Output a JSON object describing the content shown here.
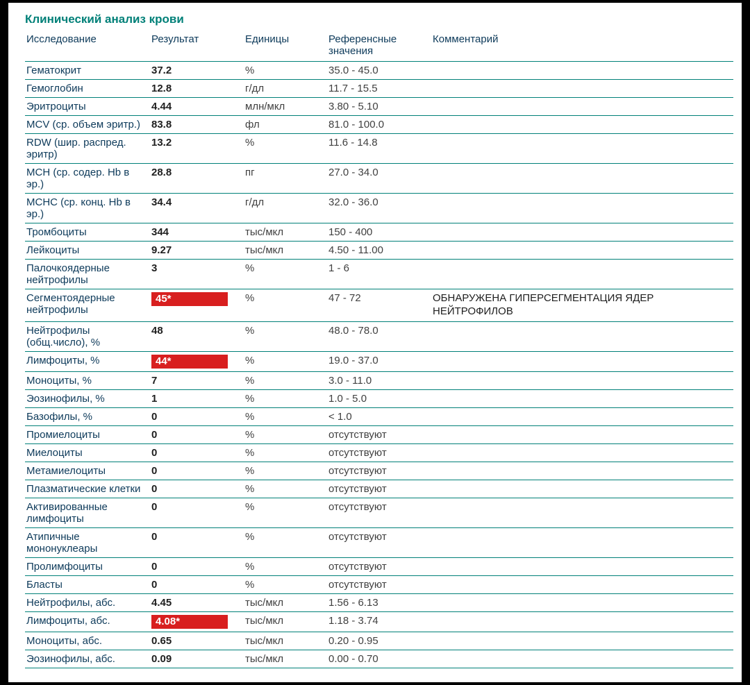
{
  "colors": {
    "title": "#008078",
    "header_text": "#0d3a5a",
    "name_text": "#0d3a5a",
    "result_text": "#202020",
    "unit_text": "#404040",
    "ref_text": "#404040",
    "comment_text": "#202020",
    "row_border": "#008078",
    "flag_bg": "#d81f1f",
    "flag_text": "#ffffff"
  },
  "title": "Клинический анализ крови",
  "headers": {
    "name": "Исследование",
    "result": "Результат",
    "unit": "Единицы",
    "ref": "Референсные значения",
    "comment": "Комментарий"
  },
  "rows": [
    {
      "name": "Гематокрит",
      "result": "37.2",
      "flag": false,
      "unit": "%",
      "ref": "35.0 - 45.0",
      "comment": ""
    },
    {
      "name": "Гемоглобин",
      "result": "12.8",
      "flag": false,
      "unit": "г/дл",
      "ref": "11.7 - 15.5",
      "comment": ""
    },
    {
      "name": "Эритроциты",
      "result": "4.44",
      "flag": false,
      "unit": "млн/мкл",
      "ref": "3.80 - 5.10",
      "comment": ""
    },
    {
      "name": "MCV (ср. объем эритр.)",
      "result": "83.8",
      "flag": false,
      "unit": "фл",
      "ref": "81.0 - 100.0",
      "comment": ""
    },
    {
      "name": "RDW (шир. распред. эритр)",
      "result": "13.2",
      "flag": false,
      "unit": "%",
      "ref": "11.6 - 14.8",
      "comment": ""
    },
    {
      "name": "MCH (ср. содер. Hb в эр.)",
      "result": "28.8",
      "flag": false,
      "unit": "пг",
      "ref": "27.0 - 34.0",
      "comment": ""
    },
    {
      "name": "MCHC (ср. конц. Hb в эр.)",
      "result": "34.4",
      "flag": false,
      "unit": "г/дл",
      "ref": "32.0 - 36.0",
      "comment": ""
    },
    {
      "name": "Тромбоциты",
      "result": "344",
      "flag": false,
      "unit": "тыс/мкл",
      "ref": "150 - 400",
      "comment": ""
    },
    {
      "name": "Лейкоциты",
      "result": "9.27",
      "flag": false,
      "unit": "тыс/мкл",
      "ref": "4.50 - 11.00",
      "comment": ""
    },
    {
      "name": "Палочкоядерные нейтрофилы",
      "result": "3",
      "flag": false,
      "unit": "%",
      "ref": "1 - 6",
      "comment": ""
    },
    {
      "name": "Сегментоядерные нейтрофилы",
      "result": "45*",
      "flag": true,
      "unit": "%",
      "ref": "47 - 72",
      "comment": "ОБНАРУЖЕНА ГИПЕРСЕГМЕНТАЦИЯ ЯДЕР НЕЙТРОФИЛОВ"
    },
    {
      "name": "Нейтрофилы (общ.число), %",
      "result": "48",
      "flag": false,
      "unit": "%",
      "ref": "48.0 - 78.0",
      "comment": ""
    },
    {
      "name": "Лимфоциты, %",
      "result": "44*",
      "flag": true,
      "unit": "%",
      "ref": "19.0 - 37.0",
      "comment": ""
    },
    {
      "name": "Моноциты, %",
      "result": "7",
      "flag": false,
      "unit": "%",
      "ref": "3.0 - 11.0",
      "comment": ""
    },
    {
      "name": "Эозинофилы, %",
      "result": "1",
      "flag": false,
      "unit": "%",
      "ref": "1.0 - 5.0",
      "comment": ""
    },
    {
      "name": "Базофилы, %",
      "result": "0",
      "flag": false,
      "unit": "%",
      "ref": "< 1.0",
      "comment": ""
    },
    {
      "name": "Промиелоциты",
      "result": "0",
      "flag": false,
      "unit": "%",
      "ref": "отсутствуют",
      "comment": ""
    },
    {
      "name": "Миелоциты",
      "result": "0",
      "flag": false,
      "unit": "%",
      "ref": "отсутствуют",
      "comment": ""
    },
    {
      "name": "Метамиелоциты",
      "result": "0",
      "flag": false,
      "unit": "%",
      "ref": "отсутствуют",
      "comment": ""
    },
    {
      "name": "Плазматические клетки",
      "result": "0",
      "flag": false,
      "unit": "%",
      "ref": "отсутствуют",
      "comment": ""
    },
    {
      "name": "Активированные лимфоциты",
      "result": "0",
      "flag": false,
      "unit": "%",
      "ref": "отсутствуют",
      "comment": ""
    },
    {
      "name": "Атипичные мононуклеары",
      "result": "0",
      "flag": false,
      "unit": "%",
      "ref": "отсутствуют",
      "comment": ""
    },
    {
      "name": "Пролимфоциты",
      "result": "0",
      "flag": false,
      "unit": "%",
      "ref": "отсутствуют",
      "comment": ""
    },
    {
      "name": "Бласты",
      "result": "0",
      "flag": false,
      "unit": "%",
      "ref": "отсутствуют",
      "comment": ""
    },
    {
      "name": "Нейтрофилы, абс.",
      "result": "4.45",
      "flag": false,
      "unit": "тыс/мкл",
      "ref": "1.56 - 6.13",
      "comment": ""
    },
    {
      "name": "Лимфоциты, абс.",
      "result": "4.08*",
      "flag": true,
      "unit": "тыс/мкл",
      "ref": "1.18 - 3.74",
      "comment": ""
    },
    {
      "name": "Моноциты, абс.",
      "result": "0.65",
      "flag": false,
      "unit": "тыс/мкл",
      "ref": "0.20 - 0.95",
      "comment": ""
    },
    {
      "name": "Эозинофилы, абс.",
      "result": "0.09",
      "flag": false,
      "unit": "тыс/мкл",
      "ref": "0.00 - 0.70",
      "comment": ""
    }
  ]
}
